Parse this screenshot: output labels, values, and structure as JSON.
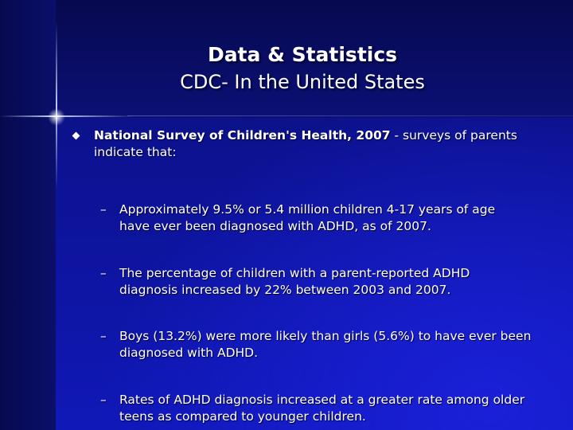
{
  "title": {
    "line1": "Data & Statistics",
    "line2": "CDC- In the United States"
  },
  "bullet": {
    "lead": "National Survey of Children's Health, 2007",
    "rest": " - surveys of parents indicate that:"
  },
  "sub_bullets": [
    {
      "marker": "–",
      "text": " Approximately 9.5% or 5.4 million children 4-17 years of age have ever been diagnosed with ADHD, as of 2007."
    },
    {
      "marker": "–",
      "text": "The percentage of children with a parent-reported ADHD diagnosis increased by 22% between 2003 and 2007."
    },
    {
      "marker": "–",
      "text": "Boys (13.2%) were more likely than girls (5.6%) to have ever been diagnosed with ADHD."
    },
    {
      "marker": "–",
      "text": "Rates of ADHD diagnosis increased at a greater rate among older teens as compared to younger children."
    }
  ],
  "colors": {
    "background_dark": "#07094f",
    "background_mid": "#0c1290",
    "background_bright": "#1a20d8",
    "text": "#ffffff"
  },
  "decorations": {
    "bullet_icon": "diamond-bullet-icon",
    "sparkle": "sparkle-star-icon"
  }
}
